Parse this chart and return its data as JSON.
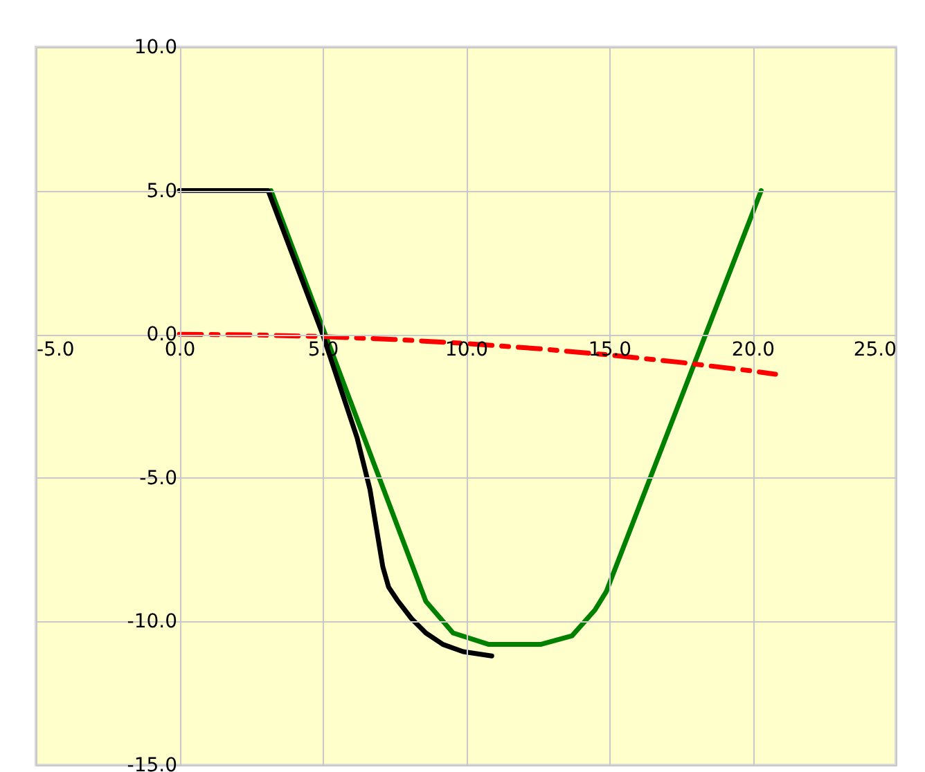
{
  "chart_data": {
    "type": "line",
    "xlim": [
      -5,
      25
    ],
    "ylim": [
      -15,
      10
    ],
    "xticks": [
      {
        "value": -5,
        "label": "-5.0"
      },
      {
        "value": 0,
        "label": "0.0"
      },
      {
        "value": 5,
        "label": "5.0"
      },
      {
        "value": 10,
        "label": "10.0"
      },
      {
        "value": 15,
        "label": "15.0"
      },
      {
        "value": 20,
        "label": "20.0"
      },
      {
        "value": 25,
        "label": "25.0"
      }
    ],
    "yticks": [
      {
        "value": 10,
        "label": "10.0"
      },
      {
        "value": 5,
        "label": "5.0"
      },
      {
        "value": 0,
        "label": "0.0"
      },
      {
        "value": -5,
        "label": "-5.0"
      },
      {
        "value": -10,
        "label": "-10.0"
      },
      {
        "value": -15,
        "label": "-15.0"
      }
    ],
    "grid": true,
    "marker": "none",
    "series": [
      {
        "color": "#008000",
        "line_style": "solid",
        "x": [
          3.2,
          8.6,
          9.55,
          10.8,
          11.5,
          12.6,
          13.7,
          14.5,
          14.9,
          20.3
        ],
        "values": [
          5,
          -9.3,
          -10.4,
          -10.8,
          -10.8,
          -10.8,
          -10.5,
          -9.6,
          -8.95,
          5
        ]
      },
      {
        "color": "#000000",
        "line_style": "solid",
        "x": [
          0,
          3.1,
          5.0,
          6.2,
          6.65,
          7.1,
          7.3,
          7.6,
          8.1,
          8.6,
          9.2,
          9.9,
          10.9
        ],
        "values": [
          5,
          5,
          0,
          -3.6,
          -5.4,
          -8.1,
          -8.8,
          -9.25,
          -9.9,
          -10.4,
          -10.8,
          -11.05,
          -11.2
        ]
      },
      {
        "color": "#ff0000",
        "line_style": "dashed",
        "x": [
          0,
          2.5,
          5,
          7.5,
          10,
          12.5,
          15,
          17.5,
          20,
          20.8
        ],
        "values": [
          0,
          -0.02,
          -0.08,
          -0.18,
          -0.32,
          -0.5,
          -0.72,
          -0.98,
          -1.28,
          -1.39
        ]
      }
    ]
  }
}
